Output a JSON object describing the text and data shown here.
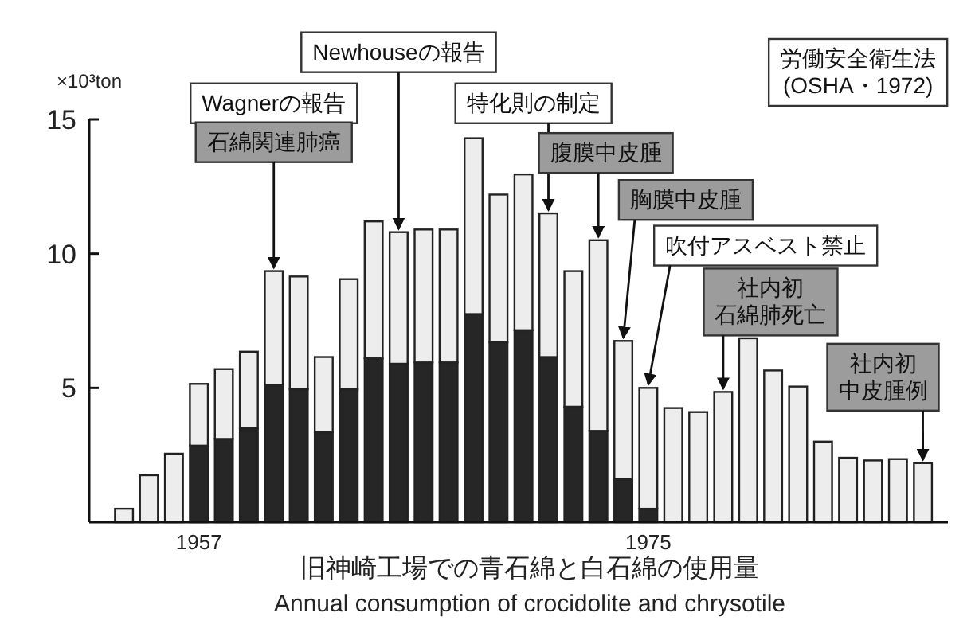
{
  "chart_data": {
    "type": "bar",
    "stacked": true,
    "ylabel": "×10³ton",
    "x": [
      1954,
      1955,
      1956,
      1957,
      1958,
      1959,
      1960,
      1961,
      1962,
      1963,
      1964,
      1965,
      1966,
      1967,
      1968,
      1969,
      1970,
      1971,
      1972,
      1973,
      1974,
      1975,
      1976,
      1977,
      1978,
      1979,
      1980,
      1981,
      1982,
      1983,
      1984,
      1985,
      1986
    ],
    "series": [
      {
        "color": "#262626",
        "values": [
          null,
          null,
          null,
          2.85,
          3.1,
          3.5,
          5.1,
          4.95,
          3.35,
          4.95,
          6.1,
          5.9,
          5.95,
          5.95,
          7.75,
          6.7,
          7.15,
          6.15,
          4.3,
          3.4,
          1.6,
          0.5,
          null,
          null,
          null,
          null,
          null,
          null,
          null,
          null,
          null,
          null,
          null
        ]
      },
      {
        "color": "#ededed",
        "values": [
          0.5,
          1.75,
          2.55,
          2.3,
          2.6,
          2.85,
          4.25,
          4.2,
          2.8,
          4.1,
          5.1,
          4.9,
          4.95,
          4.95,
          6.55,
          5.5,
          5.8,
          5.35,
          5.05,
          7.1,
          5.15,
          4.5,
          4.25,
          4.1,
          4.85,
          6.85,
          5.65,
          5.05,
          3.0,
          2.4,
          2.3,
          2.35,
          2.2
        ]
      }
    ],
    "xlim": [
      1953.5,
      1987
    ],
    "xticks": [
      1957,
      1975
    ],
    "ylim": [
      0,
      15
    ],
    "yticks": [
      5,
      10,
      15
    ],
    "annotations": [
      "Wagnerの報告",
      {
        "text": "石綿関連肺癌",
        "x": 1960,
        "y": 9.35
      },
      {
        "text": "Newhouseの報告",
        "x": 1965,
        "y": 10.8
      },
      {
        "text": "特化則の制定",
        "x": 1971,
        "y": 11.5
      },
      {
        "text": "腹膜中皮腫",
        "x": 1973,
        "y": 10.5
      },
      {
        "text": "胸膜中皮腫",
        "x": 1974,
        "y": 6.75
      },
      {
        "text": "吹付アスベスト禁止",
        "x": 1975,
        "y": 5.0
      },
      {
        "text": "社内初石綿肺死亡",
        "x": 1978,
        "y": 4.85
      },
      {
        "text": "社内初中皮腫例",
        "x": 1986,
        "y": 2.2
      },
      "労働安全衛生法(OSHA・1972)",
      "旧神崎工場での青石綿と白石綿の使用量",
      "Annual consumption of crocidolite and chrysotile"
    ]
  }
}
